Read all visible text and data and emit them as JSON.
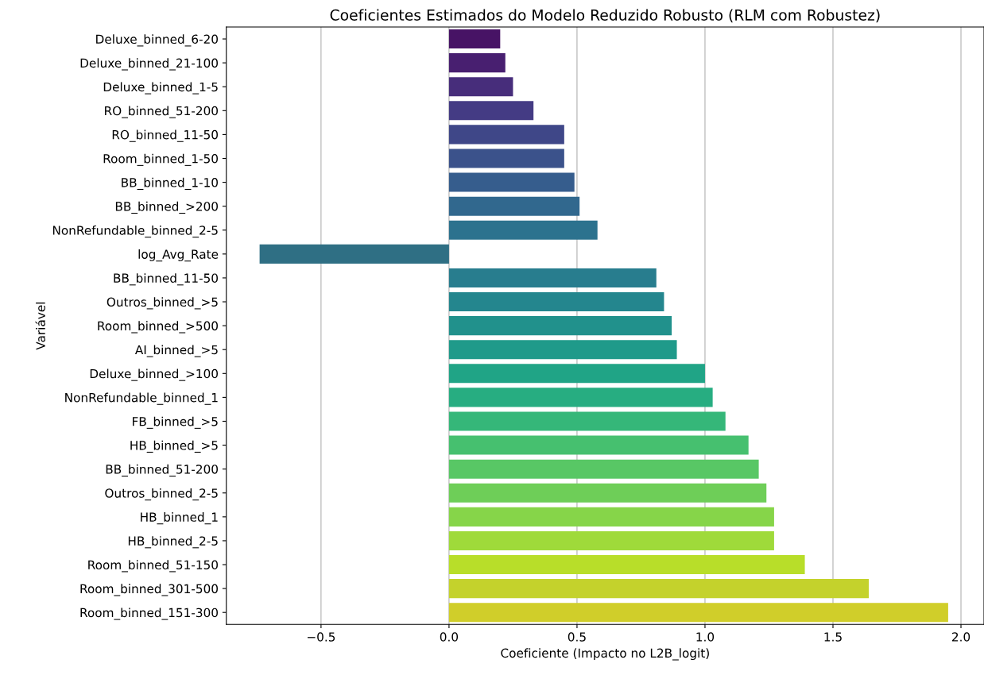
{
  "chart_data": {
    "type": "bar",
    "orientation": "horizontal",
    "title": "Coeficientes Estimados do Modelo Reduzido Robusto (RLM com Robustez)",
    "xlabel": "Coeficiente (Impacto no L2B_logit)",
    "ylabel": "Variável",
    "categories": [
      "Deluxe_binned_6-20",
      "Deluxe_binned_21-100",
      "Deluxe_binned_1-5",
      "RO_binned_51-200",
      "RO_binned_11-50",
      "Room_binned_1-50",
      "BB_binned_1-10",
      "BB_binned_>200",
      "NonRefundable_binned_2-5",
      "log_Avg_Rate",
      "BB_binned_11-50",
      "Outros_binned_>5",
      "Room_binned_>500",
      "AI_binned_>5",
      "Deluxe_binned_>100",
      "NonRefundable_binned_1",
      "FB_binned_>5",
      "HB_binned_>5",
      "BB_binned_51-200",
      "Outros_binned_2-5",
      "HB_binned_1",
      "HB_binned_2-5",
      "Room_binned_51-150",
      "Room_binned_301-500",
      "Room_binned_151-300"
    ],
    "values": [
      0.2,
      0.22,
      0.25,
      0.33,
      0.45,
      0.45,
      0.49,
      0.51,
      0.58,
      -0.74,
      0.81,
      0.84,
      0.87,
      0.89,
      1.0,
      1.03,
      1.08,
      1.17,
      1.21,
      1.24,
      1.27,
      1.27,
      1.39,
      1.64,
      1.95
    ],
    "colors": [
      "#471365",
      "#481f70",
      "#472d7b",
      "#443b84",
      "#3f4788",
      "#3b528b",
      "#365d8d",
      "#31688e",
      "#2c728e",
      "#2f6f84",
      "#287d8e",
      "#24868e",
      "#21918c",
      "#1f9a8a",
      "#20a486",
      "#27ad81",
      "#35b779",
      "#46c06f",
      "#58c765",
      "#6ece58",
      "#86d549",
      "#9fda3a",
      "#b8de29",
      "#c4d22c",
      "#d0ce2a"
    ],
    "xlim": [
      -0.87,
      2.09
    ],
    "xticks": [
      {
        "value": -0.5,
        "label": "−0.5"
      },
      {
        "value": 0,
        "label": "0.0"
      },
      {
        "value": 0.5,
        "label": "0.5"
      },
      {
        "value": 1,
        "label": "1.0"
      },
      {
        "value": 1.5,
        "label": "1.5"
      },
      {
        "value": 2,
        "label": "2.0"
      }
    ],
    "grid": "x"
  }
}
